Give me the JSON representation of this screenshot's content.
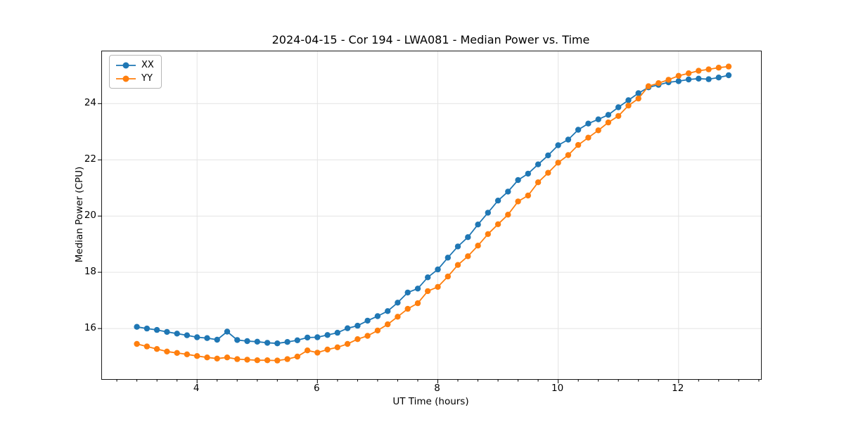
{
  "figure": {
    "background": "#ffffff",
    "spine_color": "#1a1a1a",
    "grid_color": "#e4e4e4",
    "tick_color": "#000000"
  },
  "legend": {
    "position": "upper-left",
    "entries": [
      "XX",
      "YY"
    ]
  },
  "chart_data": {
    "type": "line",
    "title": "2024-04-15 - Cor 194 - LWA081 - Median Power vs. Time",
    "xlabel": "UT Time (hours)",
    "ylabel": "Median Power (CPU)",
    "xlim": [
      2.42,
      13.37
    ],
    "ylim": [
      14.2,
      25.86
    ],
    "xticks": [
      4,
      6,
      8,
      10,
      12
    ],
    "yticks": [
      16,
      18,
      20,
      22,
      24
    ],
    "x_minor_tick_step": 0.333,
    "grid": true,
    "legend_position": "upper-left",
    "marker": "circle",
    "x": [
      3.0,
      3.167,
      3.333,
      3.5,
      3.667,
      3.833,
      4.0,
      4.167,
      4.333,
      4.5,
      4.667,
      4.833,
      5.0,
      5.167,
      5.333,
      5.5,
      5.667,
      5.833,
      6.0,
      6.167,
      6.333,
      6.5,
      6.667,
      6.833,
      7.0,
      7.167,
      7.333,
      7.5,
      7.667,
      7.833,
      8.0,
      8.167,
      8.333,
      8.5,
      8.667,
      8.833,
      9.0,
      9.167,
      9.333,
      9.5,
      9.667,
      9.833,
      10.0,
      10.167,
      10.333,
      10.5,
      10.667,
      10.833,
      11.0,
      11.167,
      11.333,
      11.5,
      11.667,
      11.833,
      12.0,
      12.167,
      12.333,
      12.5,
      12.667,
      12.833
    ],
    "series": [
      {
        "name": "XX",
        "color": "#1f77b4",
        "values": [
          16.06,
          16.0,
          15.95,
          15.88,
          15.82,
          15.76,
          15.69,
          15.66,
          15.6,
          15.89,
          15.59,
          15.55,
          15.53,
          15.49,
          15.47,
          15.52,
          15.58,
          15.68,
          15.69,
          15.77,
          15.85,
          16.01,
          16.1,
          16.28,
          16.44,
          16.62,
          16.92,
          17.28,
          17.42,
          17.82,
          18.1,
          18.52,
          18.92,
          19.25,
          19.7,
          20.12,
          20.55,
          20.87,
          21.28,
          21.51,
          21.84,
          22.16,
          22.52,
          22.72,
          23.07,
          23.29,
          23.44,
          23.6,
          23.87,
          24.12,
          24.37,
          24.58,
          24.67,
          24.76,
          24.8,
          24.86,
          24.89,
          24.87,
          24.93,
          25.01
        ]
      },
      {
        "name": "YY",
        "color": "#ff7f0e",
        "values": [
          15.45,
          15.36,
          15.27,
          15.18,
          15.13,
          15.08,
          15.02,
          14.97,
          14.93,
          14.97,
          14.91,
          14.89,
          14.87,
          14.87,
          14.86,
          14.91,
          15.0,
          15.22,
          15.14,
          15.25,
          15.33,
          15.45,
          15.62,
          15.74,
          15.93,
          16.15,
          16.42,
          16.7,
          16.9,
          17.33,
          17.48,
          17.85,
          18.26,
          18.57,
          18.95,
          19.36,
          19.71,
          20.05,
          20.52,
          20.73,
          21.2,
          21.54,
          21.9,
          22.17,
          22.53,
          22.79,
          23.05,
          23.33,
          23.56,
          23.93,
          24.18,
          24.62,
          24.73,
          24.85,
          24.99,
          25.08,
          25.17,
          25.22,
          25.28,
          25.32
        ]
      }
    ]
  }
}
